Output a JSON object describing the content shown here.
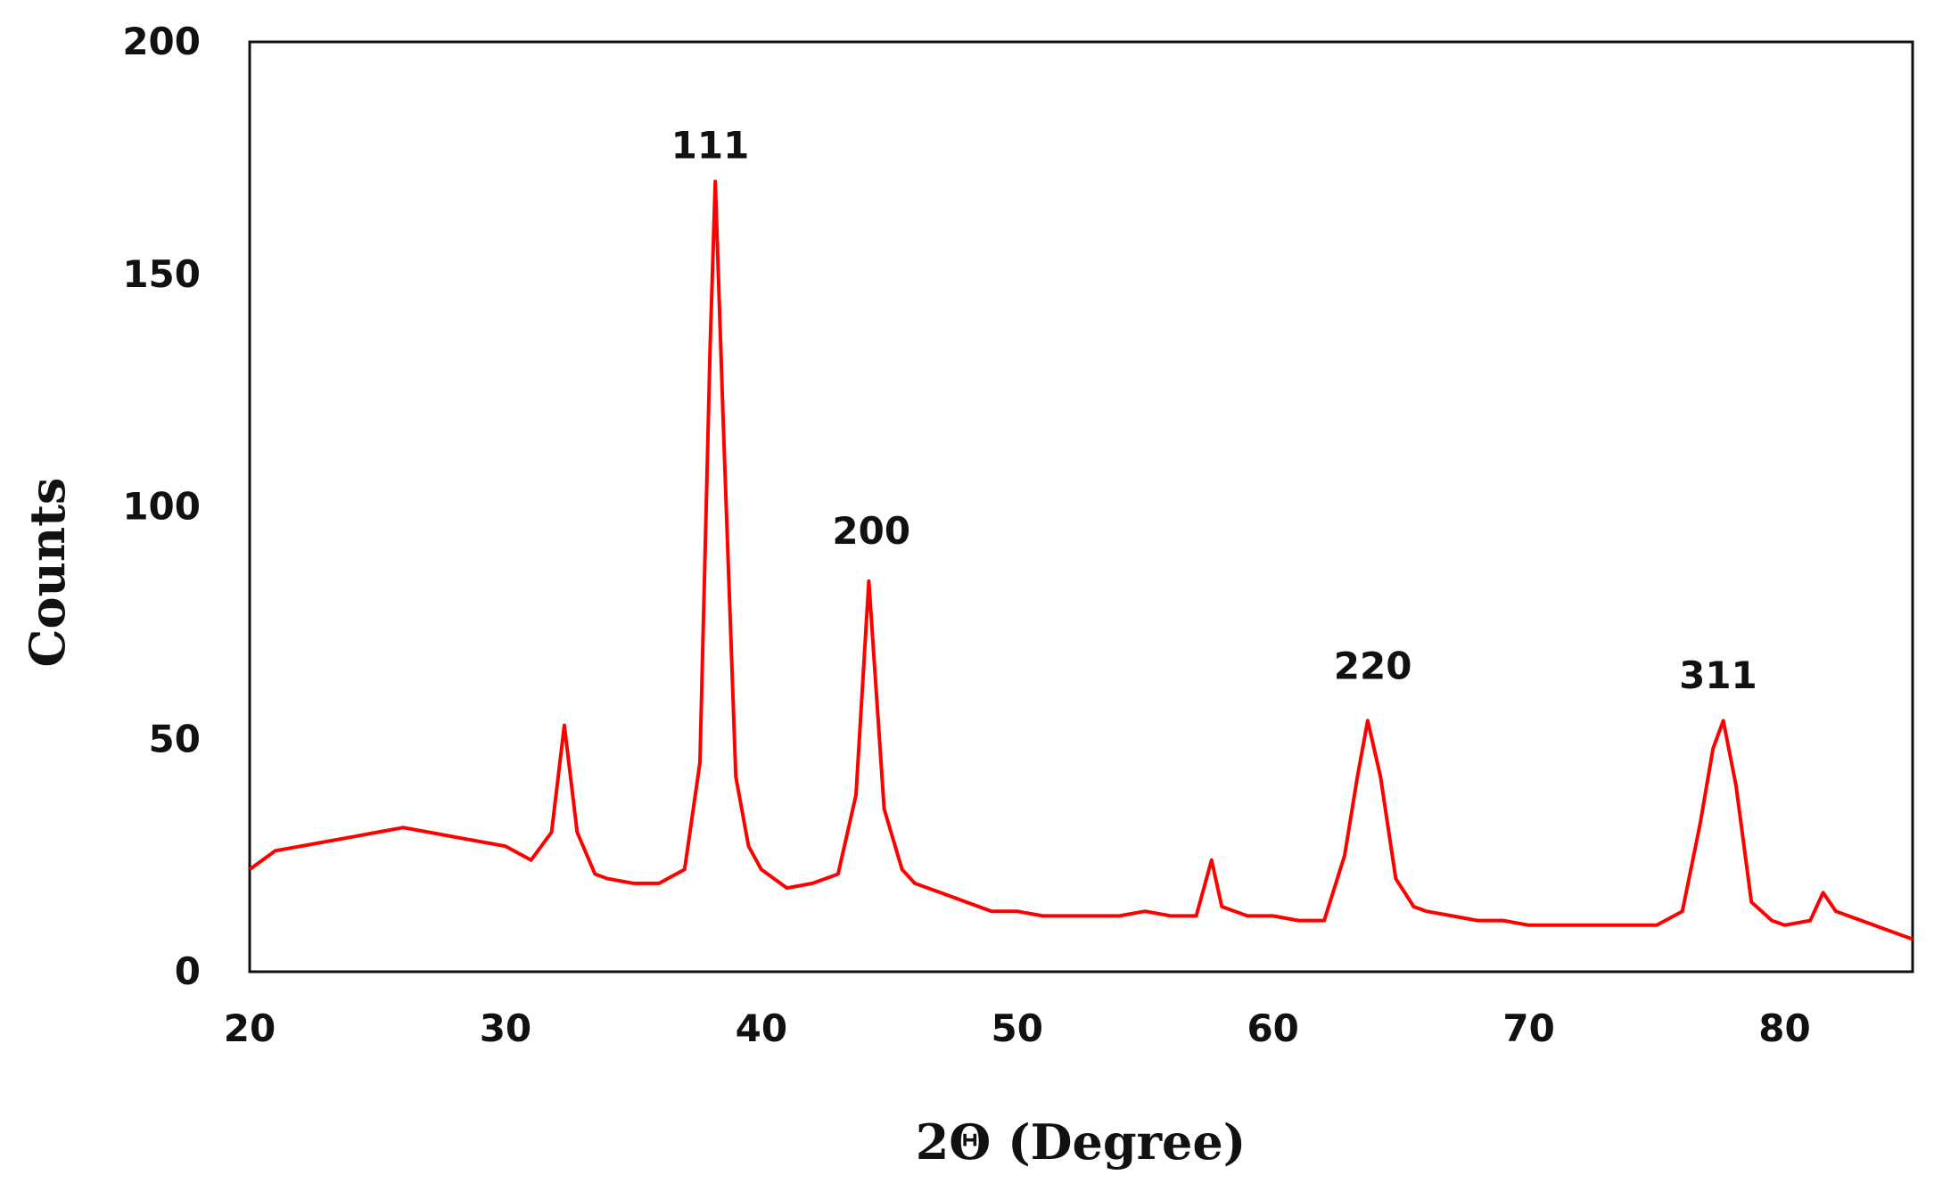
{
  "chart_data": {
    "type": "line",
    "title": "",
    "xlabel": "2Θ (Degree)",
    "ylabel": "Counts",
    "xlim": [
      20,
      85
    ],
    "ylim": [
      0,
      200
    ],
    "xticks": [
      20,
      30,
      40,
      50,
      60,
      70,
      80
    ],
    "yticks": [
      0,
      50,
      100,
      150,
      200
    ],
    "xtick_labels": [
      "20",
      "30",
      "40",
      "50",
      "60",
      "70",
      "80"
    ],
    "ytick_labels": [
      "0",
      "50",
      "100",
      "150",
      "200"
    ],
    "grid": false,
    "legend": "none",
    "line_color": "#ff0000",
    "series": [
      {
        "x": [
          20,
          21,
          22,
          23,
          24,
          25,
          26,
          27,
          28,
          29,
          30,
          31,
          31.8,
          32.3,
          32.8,
          33.5,
          34,
          35,
          36,
          37,
          37.6,
          38.0,
          38.2,
          38.5,
          39.0,
          39.5,
          40,
          41,
          42,
          43,
          43.7,
          44.2,
          44.8,
          45.5,
          46,
          47,
          48,
          49,
          50,
          51,
          52,
          53,
          54,
          55,
          56,
          57,
          57.6,
          58,
          59,
          60,
          61,
          62,
          62.8,
          63.3,
          63.7,
          64.2,
          64.8,
          65.5,
          66,
          67,
          68,
          69,
          70,
          71,
          72,
          73,
          74,
          75,
          76,
          76.7,
          77.2,
          77.6,
          78.1,
          78.7,
          79.5,
          80,
          81,
          81.5,
          82,
          83,
          84,
          85
        ],
        "y": [
          22,
          26,
          27,
          28,
          29,
          30,
          31,
          30,
          29,
          28,
          27,
          24,
          30,
          53,
          30,
          21,
          20,
          19,
          19,
          22,
          45,
          135,
          170,
          120,
          42,
          27,
          22,
          18,
          19,
          21,
          38,
          84,
          35,
          22,
          19,
          17,
          15,
          13,
          13,
          12,
          12,
          12,
          12,
          13,
          12,
          12,
          24,
          14,
          12,
          12,
          11,
          11,
          25,
          42,
          54,
          42,
          20,
          14,
          13,
          12,
          11,
          11,
          10,
          10,
          10,
          10,
          10,
          10,
          13,
          32,
          48,
          54,
          40,
          15,
          11,
          10,
          11,
          17,
          13,
          11,
          9,
          7
        ]
      }
    ],
    "annotations": [
      {
        "text": "111",
        "x": 38.0,
        "y": 175
      },
      {
        "text": "200",
        "x": 44.3,
        "y": 92
      },
      {
        "text": "220",
        "x": 63.9,
        "y": 63
      },
      {
        "text": "311",
        "x": 77.4,
        "y": 61
      }
    ]
  }
}
